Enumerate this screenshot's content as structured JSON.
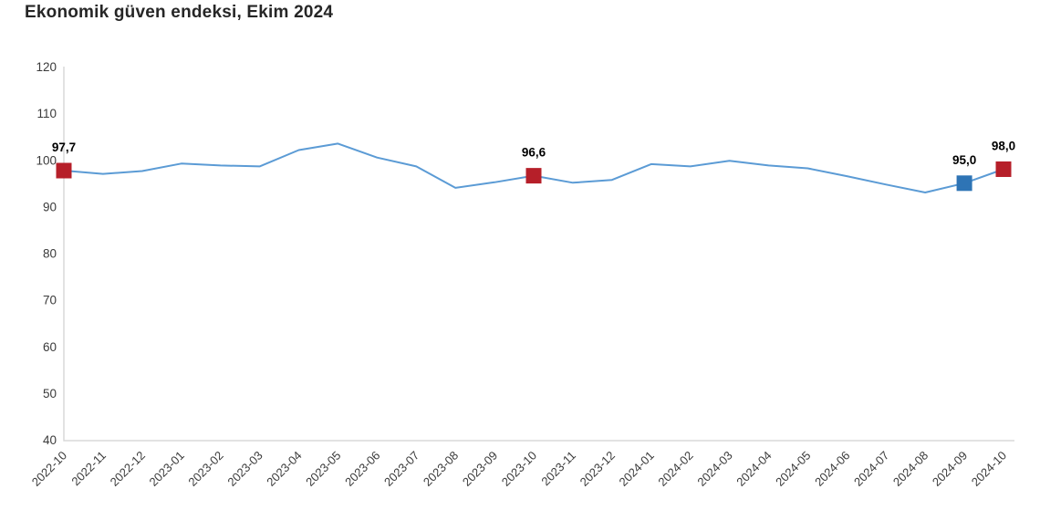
{
  "title": "Ekonomik güven endeksi, Ekim 2024",
  "colors": {
    "background": "#ffffff",
    "line": "#5B9BD5",
    "marker_red": "#B61F29",
    "marker_blue": "#2E74B5",
    "axis": "#D9D9D9",
    "title_text": "#262626",
    "tick_text": "#3A3A3A",
    "label_text": "#000000"
  },
  "chart_data": {
    "type": "line",
    "title": "Ekonomik güven endeksi, Ekim 2024",
    "xlabel": "",
    "ylabel": "",
    "ylim": [
      40,
      120
    ],
    "ytick_step": 10,
    "grid": false,
    "legend": false,
    "categories": [
      "2022-10",
      "2022-11",
      "2022-12",
      "2023-01",
      "2023-02",
      "2023-03",
      "2023-04",
      "2023-05",
      "2023-06",
      "2023-07",
      "2023-08",
      "2023-09",
      "2023-10",
      "2023-11",
      "2023-12",
      "2024-01",
      "2024-02",
      "2024-03",
      "2024-04",
      "2024-05",
      "2024-06",
      "2024-07",
      "2024-08",
      "2024-09",
      "2024-10"
    ],
    "values": [
      97.7,
      97.0,
      97.6,
      99.2,
      98.8,
      98.6,
      102.1,
      103.5,
      100.5,
      98.6,
      94.0,
      95.2,
      96.6,
      95.1,
      95.7,
      99.1,
      98.6,
      99.8,
      98.8,
      98.2,
      96.5,
      94.7,
      93.0,
      95.0,
      98.0
    ],
    "annotations": [
      {
        "category": "2022-10",
        "index": 0,
        "value": 97.7,
        "label": "97,7",
        "marker": "red-square"
      },
      {
        "category": "2023-10",
        "index": 12,
        "value": 96.6,
        "label": "96,6",
        "marker": "red-square"
      },
      {
        "category": "2024-09",
        "index": 23,
        "value": 95.0,
        "label": "95,0",
        "marker": "blue-square"
      },
      {
        "category": "2024-10",
        "index": 24,
        "value": 98.0,
        "label": "98,0",
        "marker": "red-square"
      }
    ]
  }
}
